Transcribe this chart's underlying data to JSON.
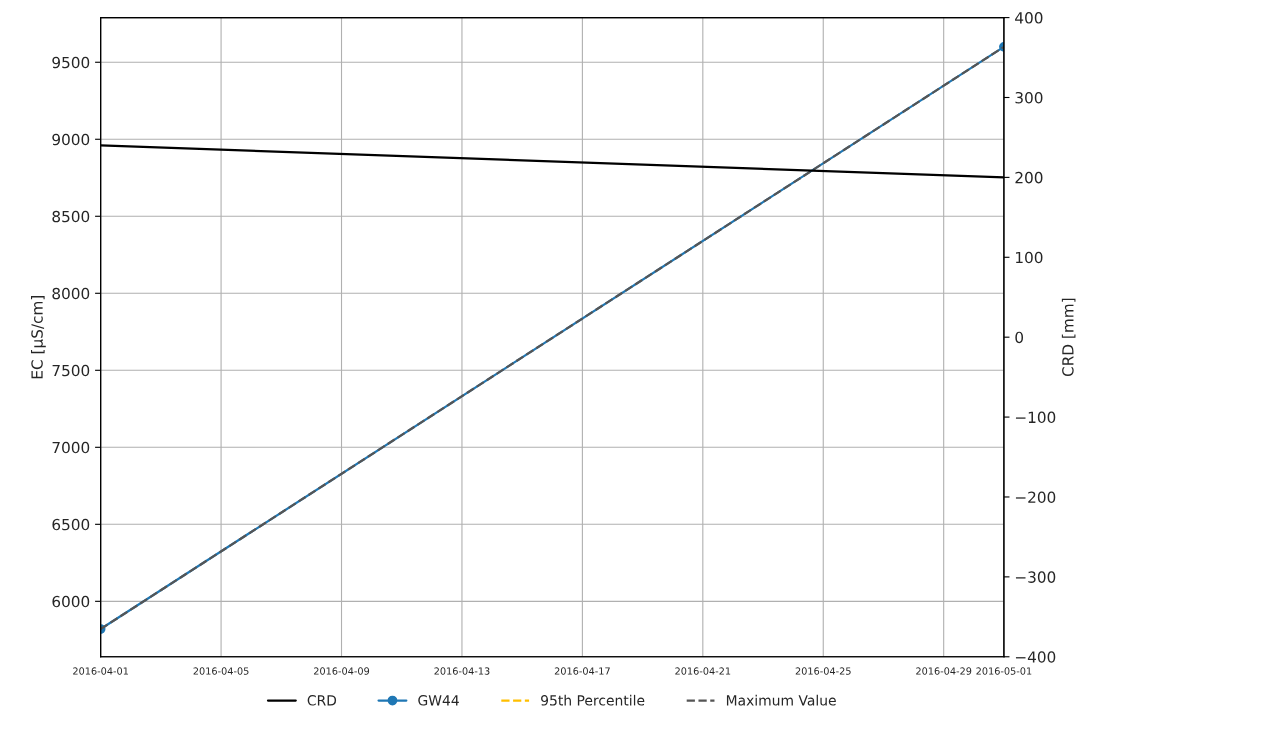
{
  "chart_data": {
    "type": "line",
    "xlabel": null,
    "ylabel": "EC [µS/cm]",
    "y2label": "CRD [mm]",
    "xlim": [
      "2016-04-01",
      "2016-05-01"
    ],
    "xticks": [
      "2016-04-01",
      "2016-04-05",
      "2016-04-09",
      "2016-04-13",
      "2016-04-17",
      "2016-04-21",
      "2016-04-25",
      "2016-04-29",
      "2016-05-01"
    ],
    "ylim": [
      5640,
      9790
    ],
    "yticks": [
      6000,
      6500,
      7000,
      7500,
      8000,
      8500,
      9000,
      9500
    ],
    "y2lim": [
      -400,
      400
    ],
    "y2ticks": [
      -400,
      -300,
      -200,
      -100,
      0,
      100,
      200,
      300,
      400
    ],
    "grid": true,
    "legend": "bottom",
    "series": [
      {
        "name": "CRD",
        "color": "#000000",
        "axis": "y2",
        "x": [
          "2016-04-01",
          "2016-05-01"
        ],
        "values": [
          240,
          200
        ],
        "marker": "none",
        "line_style": "solid"
      },
      {
        "name": "GW44",
        "color": "#1f77b4",
        "x": [
          "2016-04-01",
          "2016-05-01"
        ],
        "values": [
          5820,
          9600
        ],
        "marker": "circle",
        "line_style": "solid"
      },
      {
        "name": "95th Percentile",
        "color": "#ffbf00",
        "marker": "none",
        "line_style": "dashed"
      },
      {
        "name": "Maximum Value",
        "color": "#555555",
        "x": [
          "2016-04-01",
          "2016-05-01"
        ],
        "values": [
          5820,
          9600
        ],
        "marker": "none",
        "line_style": "dashed"
      }
    ]
  }
}
